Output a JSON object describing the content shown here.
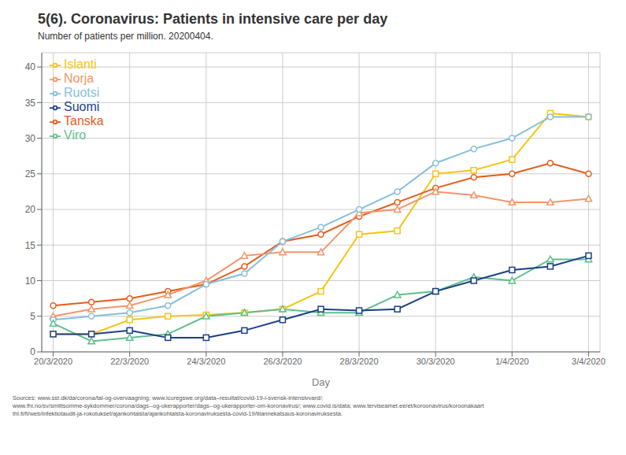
{
  "chart_data": {
    "type": "line",
    "title": "5(6). Coronavirus: Patients in intensive care per day",
    "subtitle": "Number of patients per million. 20200404.",
    "xlabel": "Day",
    "annotations": [
      "Sources: www.sst.dk/da/corona/tal-og-overvaagning; www.icuregswe.org/data–resultat/covid-19-i-svensk-intensivvard/;\nwww.fhi.no/sv/smittsomme-sykdommer/corona/dags--og-ukerapporter/dags--og-ukerapporter-om-koronavirus/; www.covid.is/data; www.terviseamet.ee/et/koroonavirus/koroonakaart\nthl.fi/fi/web/infektiotaudit-ja-rokotukset/ajankohtaista/ajankohtaista-koronaviruksesta-covid-19/tilannekatsaus-koronaviruksesta."
    ],
    "x": [
      0,
      1,
      2,
      3,
      4,
      5,
      6,
      7,
      8,
      9,
      10,
      11,
      12,
      13,
      14
    ],
    "xlim": [
      -0.3,
      14.3
    ],
    "xticks": [
      {
        "value": 0,
        "label": "20/3/2020"
      },
      {
        "value": 2,
        "label": "22/3/2020"
      },
      {
        "value": 4,
        "label": "24/3/2020"
      },
      {
        "value": 6,
        "label": "26/3/2020"
      },
      {
        "value": 8,
        "label": "28/3/2020"
      },
      {
        "value": 10,
        "label": "30/3/2020"
      },
      {
        "value": 12,
        "label": "1/4/2020"
      },
      {
        "value": 14,
        "label": "3/4/2020"
      }
    ],
    "ylim": [
      0,
      42
    ],
    "yticks": [
      0,
      5,
      10,
      15,
      20,
      25,
      30,
      35,
      40
    ],
    "grid": true,
    "legend": "upper left",
    "series": [
      {
        "name": "Islanti",
        "color": "#F5C518",
        "marker": "square",
        "values": [
          2.5,
          2.5,
          4.5,
          5.0,
          5.2,
          5.5,
          6.0,
          8.5,
          16.5,
          17.0,
          25.0,
          25.5,
          27.0,
          33.5,
          33.0
        ]
      },
      {
        "name": "Tanska",
        "color": "#E55C1B",
        "marker": "circle",
        "values": [
          6.5,
          7.0,
          7.5,
          8.5,
          9.5,
          12.0,
          15.5,
          16.5,
          19.0,
          21.0,
          23.0,
          24.5,
          25.0,
          26.5,
          25.0
        ]
      },
      {
        "name": "Norja",
        "color": "#F4956A",
        "marker": "triangle",
        "values": [
          5.0,
          6.0,
          6.5,
          8.0,
          10.0,
          13.5,
          14.0,
          14.0,
          19.5,
          20.0,
          22.5,
          22.0,
          21.0,
          21.0,
          21.5
        ]
      },
      {
        "name": "Ruotsi",
        "color": "#86BFDA",
        "marker": "circle",
        "values": [
          4.5,
          5.0,
          5.5,
          6.5,
          9.5,
          11.0,
          15.5,
          17.5,
          20.0,
          22.5,
          26.5,
          28.5,
          30.0,
          33.0,
          33.0
        ]
      },
      {
        "name": "Viro",
        "color": "#5FBE8A",
        "marker": "triangle",
        "values": [
          4.0,
          1.5,
          2.0,
          2.5,
          5.0,
          5.5,
          6.0,
          5.5,
          5.5,
          8.0,
          8.5,
          10.5,
          10.0,
          13.0,
          13.0
        ]
      },
      {
        "name": "Suomi",
        "color": "#1A3F87",
        "marker": "square",
        "values": [
          2.5,
          2.5,
          3.0,
          2.0,
          2.0,
          3.0,
          4.5,
          6.0,
          5.8,
          6.0,
          8.5,
          10.0,
          11.5,
          12.0,
          13.5
        ]
      }
    ]
  }
}
